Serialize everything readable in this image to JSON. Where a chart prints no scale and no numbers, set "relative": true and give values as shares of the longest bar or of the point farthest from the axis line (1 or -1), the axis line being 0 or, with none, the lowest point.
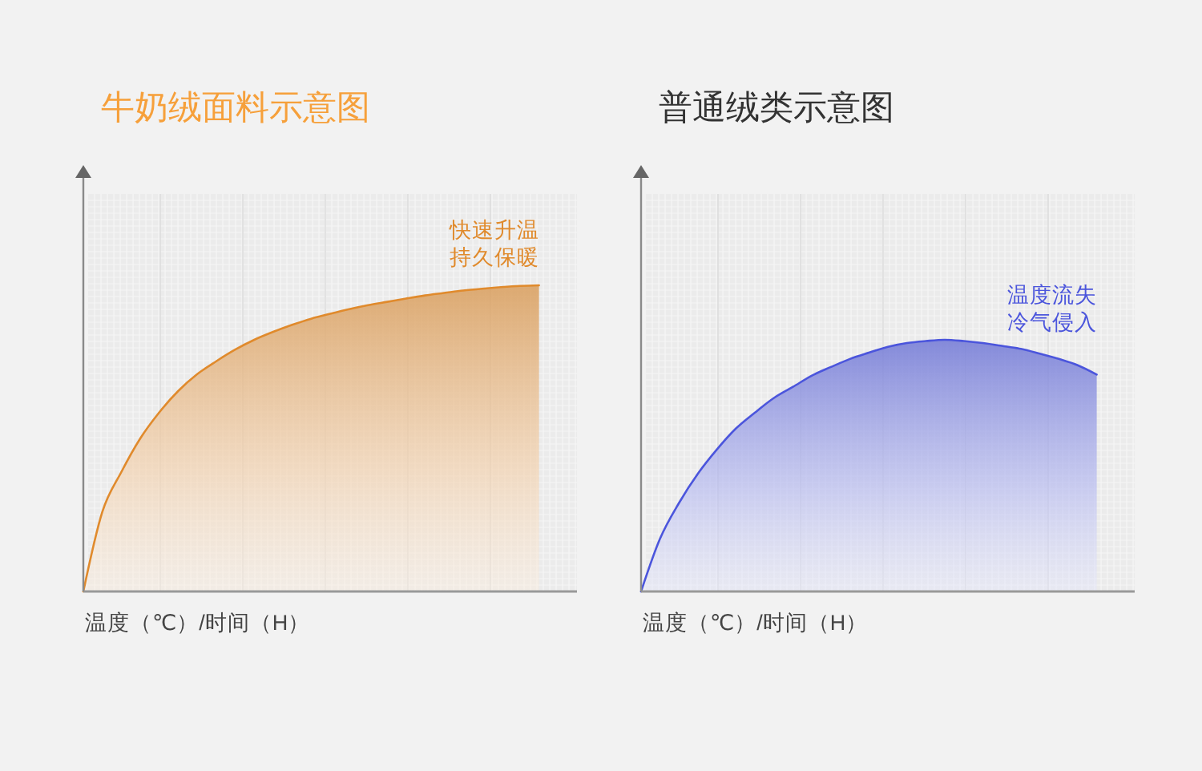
{
  "chart_data": [
    {
      "type": "area",
      "title": "牛奶绒面料示意图",
      "xlabel": "温度（℃）/时间（H）",
      "relative": true,
      "grid": true,
      "categories": [
        null,
        null,
        null,
        null,
        null,
        null,
        null,
        null,
        null,
        null,
        null,
        null,
        null,
        null,
        null,
        null,
        null,
        null,
        null,
        null,
        null,
        null,
        null,
        null,
        null,
        null,
        null
      ],
      "series": [
        {
          "color": "#e08a2c",
          "values": [
            0,
            0.26,
            0.39,
            0.5,
            0.585,
            0.655,
            0.71,
            0.752,
            0.79,
            0.822,
            0.848,
            0.871,
            0.891,
            0.907,
            0.922,
            0.935,
            0.946,
            0.957,
            0.967,
            0.975,
            0.983,
            0.989,
            0.994,
            0.998,
            1.0,
            null,
            null
          ]
        }
      ],
      "annotations": [
        "快速升温",
        "持久保暖"
      ]
    },
    {
      "type": "area",
      "title": "普通绒类示意图",
      "xlabel": "温度（℃）/时间（H）",
      "relative": true,
      "grid": true,
      "categories": [
        null,
        null,
        null,
        null,
        null,
        null,
        null,
        null,
        null,
        null,
        null,
        null,
        null,
        null,
        null,
        null,
        null,
        null,
        null,
        null,
        null,
        null,
        null,
        null,
        null,
        null,
        null
      ],
      "series": [
        {
          "color": "#4b55dc",
          "values": [
            0,
            0.21,
            0.352,
            0.469,
            0.565,
            0.648,
            0.711,
            0.769,
            0.813,
            0.858,
            0.892,
            0.924,
            0.949,
            0.972,
            0.987,
            0.995,
            1.0,
            0.995,
            0.987,
            0.976,
            0.964,
            0.945,
            0.924,
            0.899,
            0.862,
            null,
            null
          ]
        }
      ],
      "annotations": [
        "温度流失",
        "冷气侵入"
      ]
    }
  ]
}
